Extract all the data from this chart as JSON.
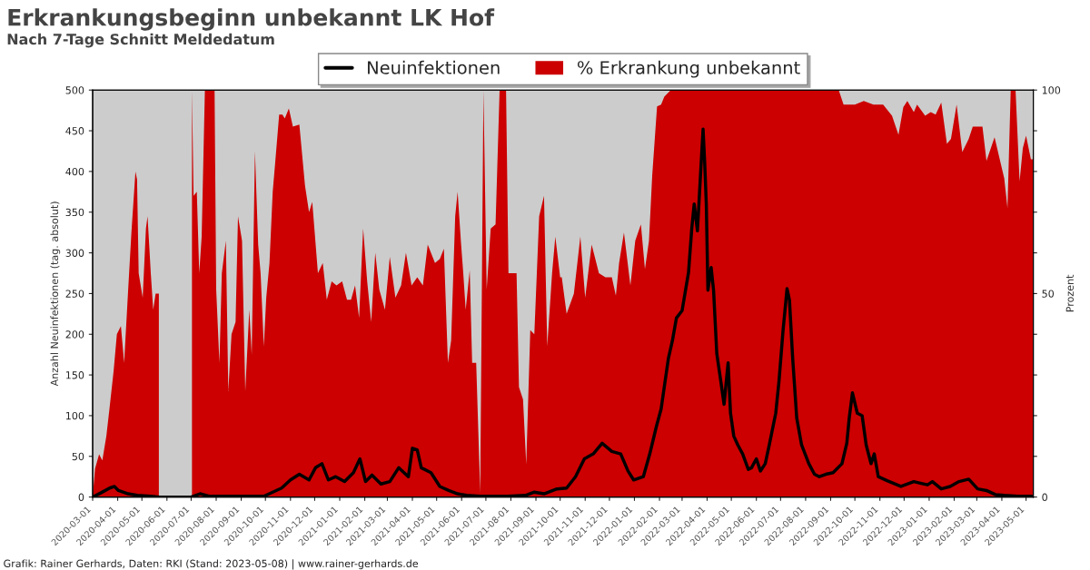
{
  "chart_data": {
    "type": "area",
    "title": "Erkrankungsbeginn unbekannt LK Hof",
    "subtitle": "Nach 7-Tage Schnitt Meldedatum",
    "ylabel": "Anzahl Neuinfektionen (tag. absolut)",
    "y2label": "Prozent",
    "annotations": [
      "Grafik: Rainer Gerhards, Daten: RKI (Stand: 2023-05-08) | www.rainer-gerhards.de"
    ],
    "legend": "top",
    "grid": false,
    "xlim": [
      "2020-03-01",
      "2023-05-10"
    ],
    "xticks": [
      "2020-03-01",
      "2020-04-01",
      "2020-05-01",
      "2020-06-01",
      "2020-07-01",
      "2020-08-01",
      "2020-09-01",
      "2020-10-01",
      "2020-11-01",
      "2020-12-01",
      "2021-01-01",
      "2021-02-01",
      "2021-03-01",
      "2021-04-01",
      "2021-05-01",
      "2021-06-01",
      "2021-07-01",
      "2021-08-01",
      "2021-09-01",
      "2021-10-01",
      "2021-11-01",
      "2021-12-01",
      "2022-01-01",
      "2022-02-01",
      "2022-03-01",
      "2022-04-01",
      "2022-05-01",
      "2022-06-01",
      "2022-07-01",
      "2022-08-01",
      "2022-09-01",
      "2022-10-01",
      "2022-11-01",
      "2022-12-01",
      "2023-01-01",
      "2023-02-01",
      "2023-03-01",
      "2023-04-01",
      "2023-05-01"
    ],
    "ylim": [
      0,
      500
    ],
    "yticks": [
      0,
      50,
      100,
      150,
      200,
      250,
      300,
      350,
      400,
      450,
      500
    ],
    "y2lim": [
      0,
      100
    ],
    "y2ticks": [
      0,
      {
        "value": 10,
        "label": null
      },
      {
        "value": 20,
        "label": null
      },
      {
        "value": 30,
        "label": null
      },
      {
        "value": 40,
        "label": null
      },
      50,
      {
        "value": 60,
        "label": null
      },
      {
        "value": 70,
        "label": null
      },
      {
        "value": 80,
        "label": null
      },
      {
        "value": 90,
        "label": null
      },
      100
    ],
    "series": [
      {
        "name": "% Erkrankung unbekannt",
        "axis": "y2",
        "color": "#cc0000",
        "x": [
          "2020-03-01",
          "2020-03-04",
          "2020-03-09",
          "2020-03-13",
          "2020-03-18",
          "2020-03-22",
          "2020-03-27",
          "2020-03-31",
          "2020-04-05",
          "2020-04-09",
          "2020-04-14",
          "2020-04-18",
          "2020-04-23",
          "2020-04-25",
          "2020-04-27",
          "2020-05-02",
          "2020-05-06",
          "2020-05-08",
          "2020-05-12",
          "2020-05-15",
          "2020-05-18",
          "2020-05-22",
          "2020-05-24",
          "2020-06-30",
          "2020-07-02",
          "2020-07-04",
          "2020-07-08",
          "2020-07-11",
          "2020-07-14",
          "2020-07-18",
          "2020-07-30",
          "2020-08-01",
          "2020-08-05",
          "2020-08-08",
          "2020-08-13",
          "2020-08-16",
          "2020-08-20",
          "2020-08-25",
          "2020-08-28",
          "2020-09-02",
          "2020-09-06",
          "2020-09-11",
          "2020-09-14",
          "2020-09-18",
          "2020-09-22",
          "2020-09-25",
          "2020-09-29",
          "2020-10-02",
          "2020-10-06",
          "2020-10-10",
          "2020-10-13",
          "2020-10-18",
          "2020-10-22",
          "2020-10-25",
          "2020-10-30",
          "2020-11-04",
          "2020-11-12",
          "2020-11-19",
          "2020-11-24",
          "2020-11-28",
          "2020-12-05",
          "2020-12-11",
          "2020-12-16",
          "2020-12-22",
          "2020-12-28",
          "2021-01-04",
          "2021-01-10",
          "2021-01-15",
          "2021-01-20",
          "2021-01-25",
          "2021-01-30",
          "2021-02-04",
          "2021-02-09",
          "2021-02-14",
          "2021-02-19",
          "2021-02-26",
          "2021-03-04",
          "2021-03-11",
          "2021-03-18",
          "2021-03-24",
          "2021-03-31",
          "2021-04-07",
          "2021-04-14",
          "2021-04-20",
          "2021-04-29",
          "2021-05-05",
          "2021-05-10",
          "2021-05-15",
          "2021-05-19",
          "2021-05-24",
          "2021-05-27",
          "2021-05-31",
          "2021-06-03",
          "2021-06-06",
          "2021-06-11",
          "2021-06-14",
          "2021-06-19",
          "2021-06-24",
          "2021-06-28",
          "2021-07-02",
          "2021-07-07",
          "2021-07-13",
          "2021-07-18",
          "2021-07-26",
          "2021-07-29",
          "2021-08-02",
          "2021-08-08",
          "2021-08-11",
          "2021-08-16",
          "2021-08-20",
          "2021-08-25",
          "2021-08-30",
          "2021-09-05",
          "2021-09-11",
          "2021-09-15",
          "2021-09-21",
          "2021-09-25",
          "2021-10-01",
          "2021-10-03",
          "2021-10-09",
          "2021-10-18",
          "2021-10-26",
          "2021-11-01",
          "2021-11-09",
          "2021-11-18",
          "2021-11-26",
          "2021-12-04",
          "2021-12-09",
          "2021-12-13",
          "2021-12-19",
          "2021-12-27",
          "2022-01-02",
          "2022-01-09",
          "2022-01-14",
          "2022-01-19",
          "2022-01-23",
          "2022-01-29",
          "2022-02-03",
          "2022-02-07",
          "2022-02-15",
          "2022-09-11",
          "2022-09-17",
          "2022-10-01",
          "2022-10-12",
          "2022-10-24",
          "2022-11-05",
          "2022-11-16",
          "2022-11-24",
          "2022-11-30",
          "2022-12-05",
          "2022-12-13",
          "2022-12-17",
          "2022-12-27",
          "2023-01-03",
          "2023-01-09",
          "2023-01-16",
          "2023-01-23",
          "2023-01-28",
          "2023-02-04",
          "2023-02-11",
          "2023-02-19",
          "2023-02-24",
          "2023-03-08",
          "2023-03-13",
          "2023-03-23",
          "2023-04-04",
          "2023-04-08",
          "2023-04-12",
          "2023-04-18",
          "2023-04-23",
          "2023-04-27",
          "2023-05-01",
          "2023-05-07",
          "2023-05-10"
        ],
        "values": [
          0,
          7,
          10.5,
          9,
          15,
          22,
          31,
          40,
          42,
          33,
          51,
          65,
          80,
          78,
          55,
          49,
          66,
          69,
          55,
          46,
          50,
          50,
          null,
          null,
          100,
          74,
          75,
          55,
          64,
          100,
          100,
          51,
          33,
          55,
          63,
          26,
          40,
          43,
          69,
          63,
          26,
          46,
          35,
          85,
          62,
          55,
          37,
          49,
          57.5,
          75,
          82,
          94,
          94,
          93,
          95.5,
          91,
          91.5,
          76.5,
          70,
          72.5,
          55,
          57.5,
          48.5,
          53,
          52,
          53,
          48.5,
          48.5,
          52,
          44,
          66,
          53,
          43,
          60,
          51,
          46,
          59,
          49,
          52,
          60,
          52,
          54,
          52,
          62,
          57.5,
          58.5,
          61,
          33,
          38.5,
          69,
          75,
          63,
          55,
          46,
          55.7,
          33,
          33,
          1,
          100,
          51,
          66,
          67,
          100,
          100,
          55,
          55,
          55,
          27,
          24,
          8,
          41,
          40,
          69,
          74,
          37,
          55,
          64,
          54,
          54,
          45,
          50,
          64,
          49,
          62,
          55,
          54,
          54,
          49.5,
          57.5,
          65,
          52,
          63,
          67,
          56,
          63,
          79,
          96,
          96.4,
          98.4,
          100,
          100,
          96.4,
          96.4,
          97.3,
          96.4,
          96.4,
          93.7,
          89,
          95.8,
          97.3,
          94.6,
          96.4,
          93.7,
          94.6,
          94,
          96.9,
          86.8,
          88,
          96.4,
          84.8,
          88,
          91,
          91,
          82.6,
          88.4,
          78.3,
          71,
          100,
          100,
          77.6,
          85.7,
          88.8,
          83,
          83
        ]
      },
      {
        "name": "Neuinfektionen",
        "type": "line",
        "color": "#000000",
        "x": [
          "2020-03-01",
          "2020-03-11",
          "2020-03-22",
          "2020-03-28",
          "2020-04-02",
          "2020-04-14",
          "2020-04-25",
          "2020-05-12",
          "2020-05-23",
          "2020-07-01",
          "2020-07-12",
          "2020-07-23",
          "2020-08-26",
          "2020-09-29",
          "2020-10-10",
          "2020-10-21",
          "2020-11-01",
          "2020-11-12",
          "2020-11-24",
          "2020-12-02",
          "2020-12-10",
          "2020-12-18",
          "2020-12-27",
          "2021-01-07",
          "2021-01-18",
          "2021-01-26",
          "2021-02-02",
          "2021-02-10",
          "2021-02-21",
          "2021-03-04",
          "2021-03-15",
          "2021-03-27",
          "2021-04-01",
          "2021-04-07",
          "2021-04-12",
          "2021-04-24",
          "2021-05-05",
          "2021-05-16",
          "2021-05-27",
          "2021-06-07",
          "2021-06-24",
          "2021-07-28",
          "2021-08-19",
          "2021-08-30",
          "2021-09-11",
          "2021-09-27",
          "2021-10-09",
          "2021-10-20",
          "2021-10-31",
          "2021-11-11",
          "2021-11-22",
          "2021-12-04",
          "2021-12-15",
          "2021-12-24",
          "2021-12-31",
          "2022-01-12",
          "2022-01-20",
          "2022-01-28",
          "2022-02-03",
          "2022-02-12",
          "2022-02-17",
          "2022-02-22",
          "2022-03-01",
          "2022-03-09",
          "2022-03-13",
          "2022-03-16",
          "2022-03-20",
          "2022-03-24",
          "2022-03-27",
          "2022-03-29",
          "2022-03-31",
          "2022-04-02",
          "2022-04-06",
          "2022-04-09",
          "2022-04-13",
          "2022-04-18",
          "2022-04-22",
          "2022-04-27",
          "2022-04-30",
          "2022-05-04",
          "2022-05-09",
          "2022-05-15",
          "2022-05-22",
          "2022-05-26",
          "2022-06-01",
          "2022-06-06",
          "2022-06-12",
          "2022-06-17",
          "2022-06-25",
          "2022-06-29",
          "2022-07-04",
          "2022-07-09",
          "2022-07-12",
          "2022-07-16",
          "2022-07-21",
          "2022-07-27",
          "2022-08-05",
          "2022-08-12",
          "2022-08-18",
          "2022-08-26",
          "2022-09-04",
          "2022-09-15",
          "2022-09-21",
          "2022-09-24",
          "2022-09-28",
          "2022-10-04",
          "2022-10-10",
          "2022-10-15",
          "2022-10-21",
          "2022-10-25",
          "2022-10-30",
          "2022-11-10",
          "2022-11-27",
          "2022-12-13",
          "2022-12-30",
          "2023-01-05",
          "2023-01-16",
          "2023-01-27",
          "2023-02-07",
          "2023-02-19",
          "2023-03-02",
          "2023-03-13",
          "2023-03-24",
          "2023-04-04",
          "2023-04-21",
          "2023-05-08"
        ],
        "values": [
          0,
          5,
          11,
          13,
          8,
          4,
          2,
          1,
          0,
          0,
          4,
          1,
          1,
          1,
          6,
          11,
          21,
          28,
          21,
          36,
          41,
          21,
          25,
          19,
          30,
          47,
          19,
          27,
          16,
          19,
          36,
          25,
          60,
          58,
          36,
          30,
          13,
          8,
          4,
          2,
          1,
          1,
          2,
          6,
          4,
          10,
          11,
          25,
          47,
          53,
          66,
          56,
          53,
          32,
          21,
          25,
          53,
          86,
          108,
          170,
          192,
          220,
          229,
          276,
          330,
          360,
          327,
          399,
          452,
          411,
          360,
          254,
          282,
          254,
          176,
          142,
          114,
          165,
          103,
          75,
          64,
          53,
          34,
          36,
          47,
          32,
          41,
          64,
          103,
          142,
          204,
          256,
          242,
          170,
          97,
          64,
          41,
          28,
          25,
          28,
          30,
          41,
          66,
          97,
          128,
          103,
          100,
          64,
          41,
          53,
          25,
          20,
          13,
          19,
          15,
          19,
          10,
          13,
          19,
          22,
          10,
          8,
          3,
          2,
          1,
          1
        ]
      }
    ]
  }
}
